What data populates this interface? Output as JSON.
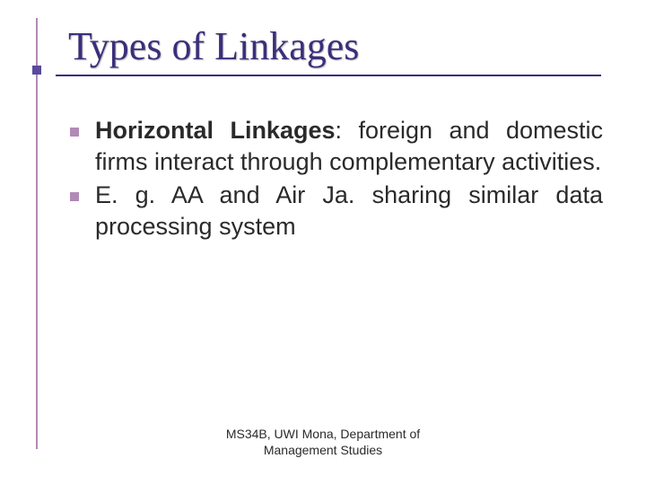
{
  "slide": {
    "title": "Types of Linkages",
    "title_color": "#3a2f7a",
    "title_fontsize": 44,
    "underline_color": "#3a2f7a",
    "accent_color": "#b18ab5",
    "notch_color": "#5a4a9c",
    "background_color": "#ffffff"
  },
  "bullets": [
    {
      "bold_lead": "Horizontal Linkages",
      "rest": ": foreign and domestic firms interact through complementary activities."
    },
    {
      "bold_lead": "",
      "rest": "E. g. AA and Air Ja. sharing similar data processing system"
    }
  ],
  "body_style": {
    "fontsize": 27,
    "text_color": "#2a2a2a",
    "bullet_color": "#b18ab5",
    "bullet_size": 10,
    "align": "justify"
  },
  "footer": {
    "line1": "MS34B, UWI Mona, Department of",
    "line2": "Management Studies",
    "fontsize": 14
  }
}
